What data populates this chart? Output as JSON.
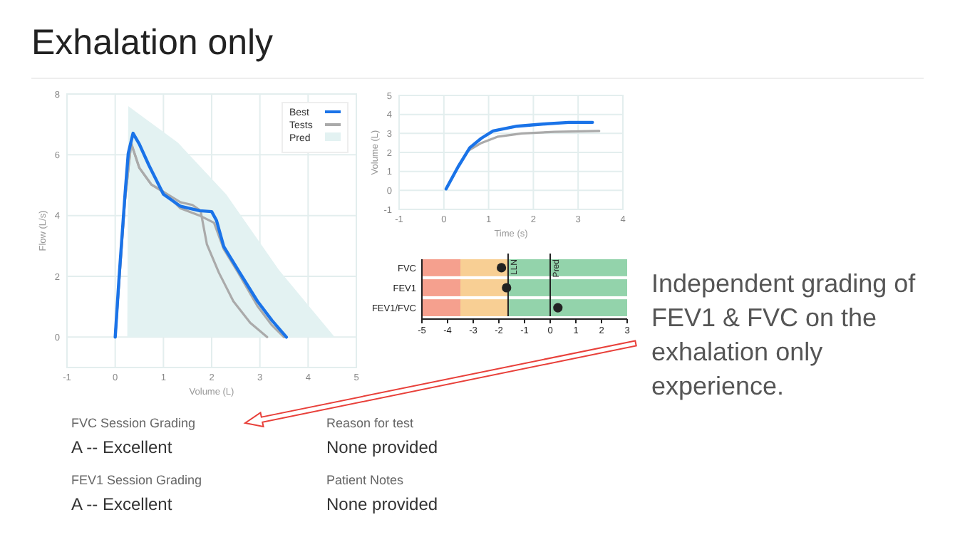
{
  "chart_data": [
    {
      "type": "other",
      "title": "Exhalation only",
      "annotations": [
        "Independent grading of FEV1 & FVC on the exhalation only experience.",
        "FVC Session Grading",
        "A -- Excellent",
        "Reason for test",
        "None provided",
        "FEV1 Session Grading",
        "A -- Excellent",
        "Patient Notes",
        "None provided"
      ]
    },
    {
      "type": "line",
      "xlabel": "Volume (L)",
      "ylabel": "Flow (L/s)",
      "xlim": [
        -1,
        5
      ],
      "xticks": [
        -1,
        0,
        1,
        2,
        3,
        4,
        5
      ],
      "ylim": [
        -1,
        8
      ],
      "yticks": [
        0,
        2,
        4,
        6,
        8
      ],
      "grid": true,
      "legend": "top right",
      "series": [
        {
          "name": "Pred",
          "type": "area",
          "color": "#e3f2f2",
          "x": [
            0.25,
            0.27,
            1.3,
            2.3,
            3.4,
            4.55
          ],
          "values": [
            0,
            7.6,
            6.4,
            4.7,
            2.2,
            0
          ]
        },
        {
          "name": "Tests",
          "color": "#aaaaaa",
          "x": [
            0,
            0.2,
            0.33,
            0.5,
            0.75,
            1.0,
            1.35,
            1.6,
            1.77,
            1.9,
            2.15,
            2.45,
            2.8,
            3.15
          ],
          "values": [
            0,
            4.47,
            6.38,
            5.57,
            5.02,
            4.78,
            4.44,
            4.35,
            4.16,
            3.06,
            2.12,
            1.18,
            0.47,
            0
          ]
        },
        {
          "color": "#aaaaaa",
          "x": [
            0,
            0.2,
            0.33,
            0.5,
            0.75,
            1.0,
            1.35,
            1.75,
            2.05,
            2.25,
            2.55,
            2.95,
            3.25,
            3.5
          ],
          "values": [
            0,
            4.47,
            6.38,
            5.57,
            5.02,
            4.78,
            4.24,
            4.0,
            3.76,
            2.9,
            2.12,
            1.02,
            0.39,
            0
          ]
        },
        {
          "name": "Best",
          "color": "#1a73e8",
          "x": [
            0,
            0.08,
            0.2,
            0.27,
            0.37,
            0.5,
            0.7,
            1.0,
            1.35,
            1.75,
            2.0,
            2.1,
            2.25,
            2.55,
            2.95,
            3.25,
            3.55
          ],
          "values": [
            0,
            1.96,
            4.63,
            6.04,
            6.71,
            6.35,
            5.65,
            4.7,
            4.31,
            4.16,
            4.13,
            3.84,
            2.98,
            2.2,
            1.18,
            0.55,
            0
          ]
        }
      ]
    },
    {
      "type": "line",
      "xlabel": "Time (s)",
      "ylabel": "Volume (L)",
      "xlim": [
        -1,
        4
      ],
      "xticks": [
        -1,
        0,
        1,
        2,
        3,
        4
      ],
      "ylim": [
        -1,
        5
      ],
      "yticks": [
        -1,
        0,
        1,
        2,
        3,
        4,
        5
      ],
      "grid": true,
      "series": [
        {
          "color": "#aaaaaa",
          "x": [
            0.55,
            0.84,
            1.21,
            1.74,
            2.47,
            3.47
          ],
          "values": [
            2.1,
            2.5,
            2.83,
            3.0,
            3.08,
            3.13
          ]
        },
        {
          "color": "#1a73e8",
          "x": [
            0.05,
            0.32,
            0.58,
            0.84,
            1.1,
            1.63,
            2.26,
            2.79,
            3.32
          ],
          "values": [
            0.08,
            1.25,
            2.25,
            2.75,
            3.13,
            3.38,
            3.5,
            3.58,
            3.58
          ]
        }
      ]
    },
    {
      "type": "scatter",
      "orientation": "horizontal",
      "categories": [
        "FVC",
        "FEV1",
        "FEV1/FVC"
      ],
      "values": [
        -1.9,
        -1.7,
        0.3
      ],
      "color": "#222222",
      "marker": "circle",
      "xlim": [
        -5,
        3
      ],
      "xticks": [
        -5,
        -4,
        -3,
        -2,
        -1,
        0,
        1,
        2,
        3
      ],
      "ref_lines": [
        {
          "axis": "x",
          "value": -1.64,
          "label": "LLN"
        },
        {
          "axis": "x",
          "value": 0,
          "label": "Pred"
        }
      ],
      "bands": [
        {
          "axis": "x",
          "from": -5,
          "to": -3.5,
          "color": "#f5a08e"
        },
        {
          "axis": "x",
          "from": -3.5,
          "to": -1.64,
          "color": "#f8cf94"
        },
        {
          "axis": "x",
          "from": -1.64,
          "to": 3,
          "color": "#93d3ab"
        }
      ]
    }
  ]
}
